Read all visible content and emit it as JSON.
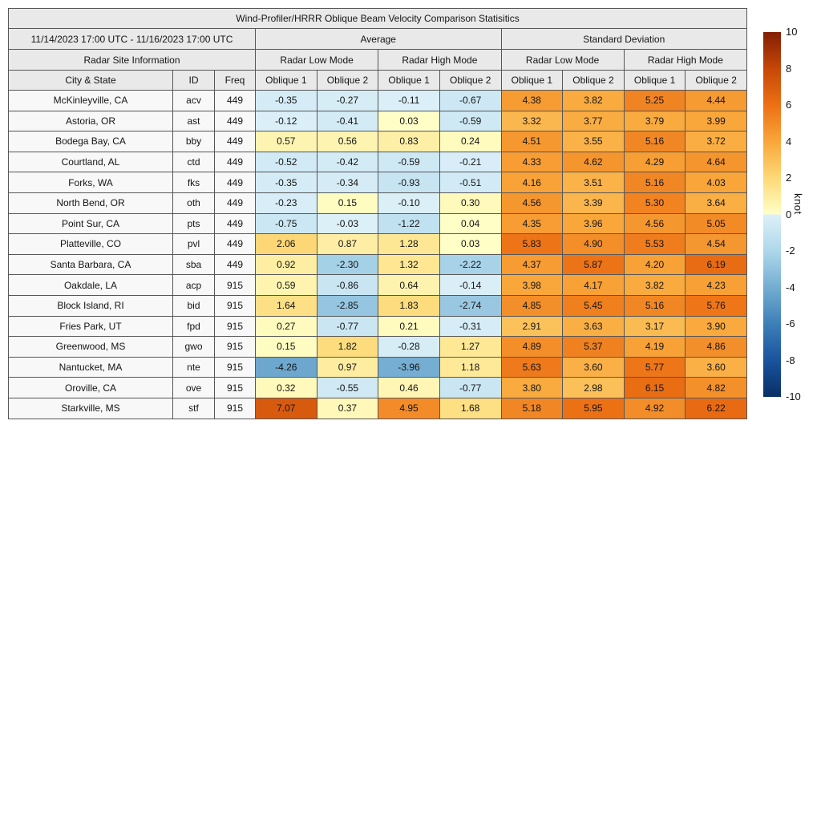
{
  "chart_data": {
    "type": "table",
    "title": "Wind-Profiler/HRRR Oblique Beam Velocity Comparison Statisitics",
    "date_range": "11/14/2023 17:00 UTC - 11/16/2023 17:00 UTC",
    "group_headers": {
      "average": "Average",
      "std": "Standard Deviation"
    },
    "mode_headers": {
      "site_info": "Radar Site Information",
      "low": "Radar Low Mode",
      "high": "Radar High Mode"
    },
    "column_headers": {
      "city": "City & State",
      "id": "ID",
      "freq": "Freq",
      "oblique1": "Oblique 1",
      "oblique2": "Oblique 2"
    },
    "rows": [
      {
        "city": "McKinleyville, CA",
        "id": "acv",
        "freq": "449",
        "values": [
          -0.35,
          -0.27,
          -0.11,
          -0.67,
          4.38,
          3.82,
          5.25,
          4.44
        ]
      },
      {
        "city": "Astoria, OR",
        "id": "ast",
        "freq": "449",
        "values": [
          -0.12,
          -0.41,
          0.03,
          -0.59,
          3.32,
          3.77,
          3.79,
          3.99
        ]
      },
      {
        "city": "Bodega Bay, CA",
        "id": "bby",
        "freq": "449",
        "values": [
          0.57,
          0.56,
          0.83,
          0.24,
          4.51,
          3.55,
          5.16,
          3.72
        ]
      },
      {
        "city": "Courtland, AL",
        "id": "ctd",
        "freq": "449",
        "values": [
          -0.52,
          -0.42,
          -0.59,
          -0.21,
          4.33,
          4.62,
          4.29,
          4.64
        ]
      },
      {
        "city": "Forks, WA",
        "id": "fks",
        "freq": "449",
        "values": [
          -0.35,
          -0.34,
          -0.93,
          -0.51,
          4.16,
          3.51,
          5.16,
          4.03
        ]
      },
      {
        "city": "North Bend, OR",
        "id": "oth",
        "freq": "449",
        "values": [
          -0.23,
          0.15,
          -0.1,
          0.3,
          4.56,
          3.39,
          5.3,
          3.64
        ]
      },
      {
        "city": "Point Sur, CA",
        "id": "pts",
        "freq": "449",
        "values": [
          -0.75,
          -0.03,
          -1.22,
          0.04,
          4.35,
          3.96,
          4.56,
          5.05
        ]
      },
      {
        "city": "Platteville, CO",
        "id": "pvl",
        "freq": "449",
        "values": [
          2.06,
          0.87,
          1.28,
          0.03,
          5.83,
          4.9,
          5.53,
          4.54
        ]
      },
      {
        "city": "Santa Barbara, CA",
        "id": "sba",
        "freq": "449",
        "values": [
          0.92,
          -2.3,
          1.32,
          -2.22,
          4.37,
          5.87,
          4.2,
          6.19
        ]
      },
      {
        "city": "Oakdale, LA",
        "id": "acp",
        "freq": "915",
        "values": [
          0.59,
          -0.86,
          0.64,
          -0.14,
          3.98,
          4.17,
          3.82,
          4.23
        ]
      },
      {
        "city": "Block Island, RI",
        "id": "bid",
        "freq": "915",
        "values": [
          1.64,
          -2.85,
          1.83,
          -2.74,
          4.85,
          5.45,
          5.16,
          5.76
        ]
      },
      {
        "city": "Fries Park, UT",
        "id": "fpd",
        "freq": "915",
        "values": [
          0.27,
          -0.77,
          0.21,
          -0.31,
          2.91,
          3.63,
          3.17,
          3.9
        ]
      },
      {
        "city": "Greenwood, MS",
        "id": "gwo",
        "freq": "915",
        "values": [
          0.15,
          1.82,
          -0.28,
          1.27,
          4.89,
          5.37,
          4.19,
          4.86
        ]
      },
      {
        "city": "Nantucket, MA",
        "id": "nte",
        "freq": "915",
        "values": [
          -4.26,
          0.97,
          -3.96,
          1.18,
          5.63,
          3.6,
          5.77,
          3.6
        ]
      },
      {
        "city": "Oroville, CA",
        "id": "ove",
        "freq": "915",
        "values": [
          0.32,
          -0.55,
          0.46,
          -0.77,
          3.8,
          2.98,
          6.15,
          4.82
        ]
      },
      {
        "city": "Starkville, MS",
        "id": "stf",
        "freq": "915",
        "values": [
          7.07,
          0.37,
          4.95,
          1.68,
          5.18,
          5.95,
          4.92,
          6.22
        ]
      }
    ],
    "colorbar": {
      "label": "knot",
      "min": -10,
      "max": 10,
      "ticks": [
        10,
        8,
        6,
        4,
        2,
        0,
        -2,
        -4,
        -6,
        -8,
        -10
      ],
      "positive_stops": [
        [
          0,
          "#ffffc8"
        ],
        [
          2,
          "#fdd977"
        ],
        [
          4,
          "#f9a63a"
        ],
        [
          6,
          "#ec7014"
        ],
        [
          8,
          "#c64708"
        ],
        [
          10,
          "#821e05"
        ]
      ],
      "negative_stops": [
        [
          0,
          "#ddf0f8"
        ],
        [
          2,
          "#aed7eb"
        ],
        [
          4,
          "#74add1"
        ],
        [
          6,
          "#3d7fb8"
        ],
        [
          8,
          "#1a539e"
        ],
        [
          10,
          "#082f66"
        ]
      ]
    }
  }
}
